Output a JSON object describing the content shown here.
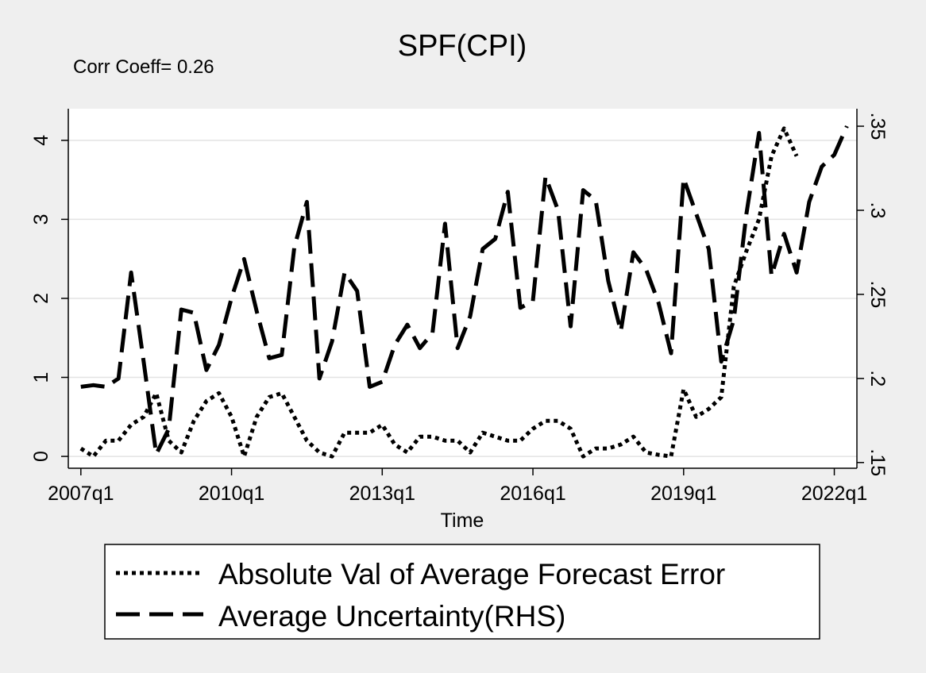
{
  "chart_data": {
    "type": "line",
    "title": "SPF(CPI)",
    "note": "Corr Coeff= 0.26",
    "xlabel": "Time",
    "ylabel": "",
    "ylabel_right": "",
    "x_tick_labels": [
      "2007q1",
      "2010q1",
      "2013q1",
      "2016q1",
      "2019q1",
      "2022q1"
    ],
    "y_left_ticks": [
      "0",
      "1",
      "2",
      "3",
      "4"
    ],
    "y_right_ticks": [
      ".15",
      ".2",
      ".25",
      ".3",
      ".35"
    ],
    "y_left_lim": [
      -0.15,
      4.4
    ],
    "y_right_lim": [
      0.1466,
      0.3604
    ],
    "x_start_year": 2007,
    "x_lim": [
      2006.75,
      2022.45
    ],
    "grid": true,
    "legend_position": "bottom",
    "x": [
      2007.0,
      2007.25,
      2007.5,
      2007.75,
      2008.0,
      2008.25,
      2008.5,
      2008.75,
      2009.0,
      2009.25,
      2009.5,
      2009.75,
      2010.0,
      2010.25,
      2010.5,
      2010.75,
      2011.0,
      2011.25,
      2011.5,
      2011.75,
      2012.0,
      2012.25,
      2012.5,
      2012.75,
      2013.0,
      2013.25,
      2013.5,
      2013.75,
      2014.0,
      2014.25,
      2014.5,
      2014.75,
      2015.0,
      2015.25,
      2015.5,
      2015.75,
      2016.0,
      2016.25,
      2016.5,
      2016.75,
      2017.0,
      2017.25,
      2017.5,
      2017.75,
      2018.0,
      2018.25,
      2018.5,
      2018.75,
      2019.0,
      2019.25,
      2019.5,
      2019.75,
      2020.0,
      2020.25,
      2020.5,
      2020.75,
      2021.0,
      2021.25,
      2021.5,
      2021.75,
      2022.0,
      2022.25
    ],
    "series": [
      {
        "name": "Absolute Val of Average Forecast Error",
        "axis": "left",
        "dash": "dotted",
        "values": [
          0.1,
          0.0,
          0.2,
          0.2,
          0.4,
          0.5,
          0.8,
          0.2,
          0.05,
          0.45,
          0.7,
          0.8,
          0.5,
          0.0,
          0.5,
          0.75,
          0.8,
          0.5,
          0.2,
          0.05,
          0.0,
          0.3,
          0.3,
          0.3,
          0.4,
          0.15,
          0.05,
          0.25,
          0.25,
          0.2,
          0.2,
          0.05,
          0.3,
          0.25,
          0.2,
          0.2,
          0.35,
          0.45,
          0.45,
          0.35,
          0.0,
          0.1,
          0.1,
          0.15,
          0.25,
          0.05,
          0.02,
          0.0,
          0.85,
          0.5,
          0.6,
          0.75,
          2.15,
          2.6,
          3.0,
          3.8,
          4.15,
          3.8,
          null,
          null,
          null,
          null
        ]
      },
      {
        "name": "Average Uncertainty(RHS)",
        "axis": "right",
        "dash": "dashed",
        "values": [
          0.195,
          0.196,
          0.195,
          0.2,
          0.263,
          0.21,
          0.155,
          0.17,
          0.241,
          0.239,
          0.205,
          0.22,
          0.248,
          0.271,
          0.24,
          0.212,
          0.214,
          0.278,
          0.305,
          0.2,
          0.222,
          0.263,
          0.252,
          0.195,
          0.198,
          0.22,
          0.232,
          0.218,
          0.227,
          0.292,
          0.218,
          0.237,
          0.277,
          0.283,
          0.311,
          0.242,
          0.246,
          0.32,
          0.3,
          0.231,
          0.312,
          0.306,
          0.258,
          0.228,
          0.275,
          0.265,
          0.245,
          0.215,
          0.319,
          0.298,
          0.277,
          0.21,
          0.235,
          0.298,
          0.346,
          0.261,
          0.286,
          0.263,
          0.305,
          0.326,
          0.333,
          0.35
        ]
      }
    ]
  }
}
